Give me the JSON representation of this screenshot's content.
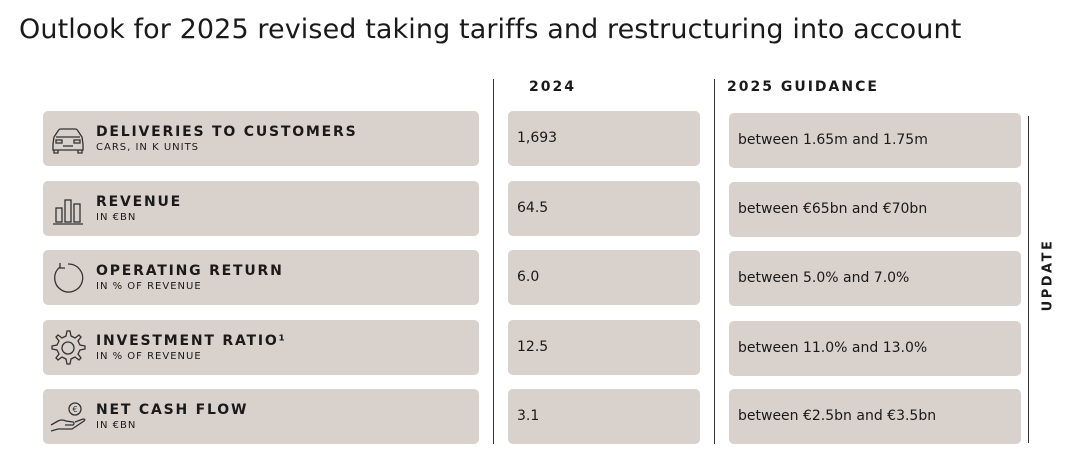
{
  "title": "Outlook for 2025 revised taking tariffs and restructuring into account",
  "columns": {
    "year": "2024",
    "guidance": "2025 GUIDANCE"
  },
  "side_label": "UPDATE",
  "rows": [
    {
      "name": "DELIVERIES TO CUSTOMERS",
      "unit": "CARS, IN K UNITS",
      "icon": "car-icon",
      "value_2024": "1,693",
      "guidance": "between 1.65m and 1.75m"
    },
    {
      "name": "REVENUE",
      "unit": "IN €BN",
      "icon": "bar-chart-icon",
      "value_2024": "64.5",
      "guidance": "between €65bn and €70bn"
    },
    {
      "name": "OPERATING RETURN",
      "unit": "IN % OF REVENUE",
      "icon": "return-arrow-icon",
      "value_2024": "6.0",
      "guidance": "between 5.0% and 7.0%"
    },
    {
      "name": "INVESTMENT RATIO¹",
      "unit": "IN % OF REVENUE",
      "icon": "gear-icon",
      "value_2024": "12.5",
      "guidance": "between 11.0% and 13.0%"
    },
    {
      "name": "NET CASH FLOW",
      "unit": "IN €BN",
      "icon": "hand-coin-icon",
      "value_2024": "3.1",
      "guidance": "between €2.5bn and €3.5bn"
    }
  ]
}
